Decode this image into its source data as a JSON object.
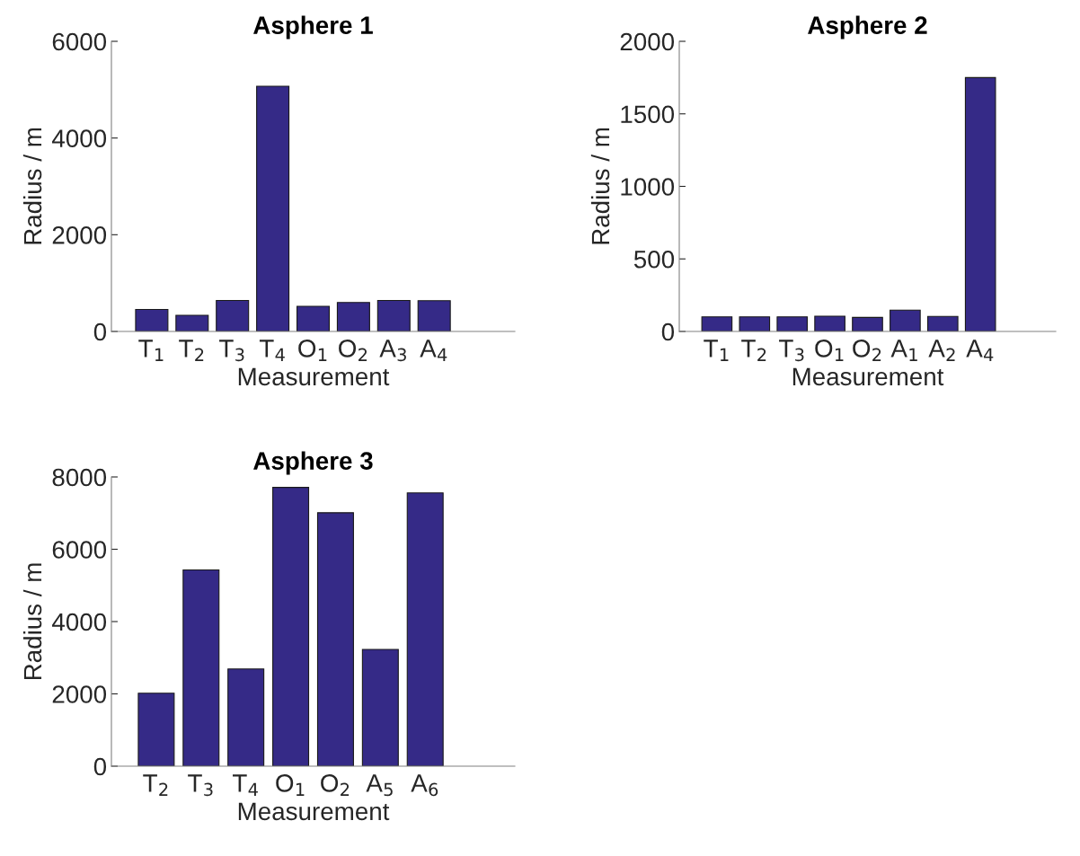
{
  "chart_data": [
    {
      "type": "bar",
      "title": "Asphere 1",
      "xlabel": "Measurement",
      "ylabel": "Radius / m",
      "categories": [
        "T$_{1}$",
        "T$_{2}$",
        "T$_{3}$",
        "T$_{4}$",
        "O$_{1}$",
        "O$_{2}$",
        "A$_{3}$",
        "A$_{4}$"
      ],
      "values": [
        455,
        335,
        640,
        5070,
        520,
        600,
        640,
        635
      ],
      "color": "#352a87",
      "ylim": [
        0,
        6000
      ],
      "yticks": [
        0,
        2000,
        4000,
        6000
      ],
      "grid": false,
      "legend": false
    },
    {
      "type": "bar",
      "title": "Asphere 2",
      "xlabel": "Measurement",
      "ylabel": "Radius / m",
      "categories": [
        "T$_{1}$",
        "T$_{2}$",
        "T$_{3}$",
        "O$_{1}$",
        "O$_{2}$",
        "A$_{1}$",
        "A$_{2}$",
        "A$_{4}$"
      ],
      "values": [
        101,
        101,
        101,
        105,
        97,
        147,
        104,
        1750
      ],
      "color": "#352a87",
      "ylim": [
        0,
        2000
      ],
      "yticks": [
        0,
        500,
        1000,
        1500,
        2000
      ],
      "grid": false,
      "legend": false
    },
    {
      "type": "bar",
      "title": "Asphere 3",
      "xlabel": "Measurement",
      "ylabel": "Radius / m",
      "categories": [
        "T$_{2}$",
        "T$_{3}$",
        "T$_{4}$",
        "O$_{1}$",
        "O$_{2}$",
        "A$_{5}$",
        "A$_{6}$"
      ],
      "values": [
        2020,
        5430,
        2690,
        7710,
        7010,
        3230,
        7560
      ],
      "color": "#352a87",
      "ylim": [
        0,
        8000
      ],
      "yticks": [
        0,
        2000,
        4000,
        6000,
        8000
      ],
      "grid": false,
      "legend": false
    }
  ]
}
